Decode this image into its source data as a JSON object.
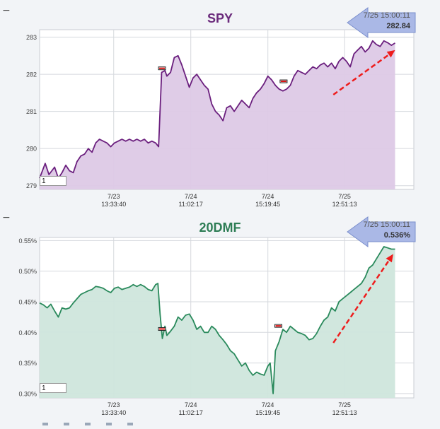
{
  "collapse_symbol": "−",
  "colors": {
    "spy_line": "#6b1f7e",
    "spy_fill": "#ddc9e6",
    "dmf_line": "#2a8a5c",
    "dmf_fill": "#cfe6dc",
    "trend_arrow": "#ee1c1c",
    "grid": "#d5d8dd",
    "readout_bg": "#a9b8e4",
    "readout_border": "#7b8fcc"
  },
  "chart_data": [
    {
      "id": "spy",
      "type": "area",
      "title": "SPY",
      "readout": {
        "time": "7/25 15:00:11",
        "value": "282.84"
      },
      "range_value": "1",
      "ylim": [
        278.9,
        283.2
      ],
      "yticks": [
        279,
        280,
        281,
        282,
        283
      ],
      "ytick_labels": [
        "279",
        "280",
        "281",
        "282",
        "283"
      ],
      "xlim": [
        0,
        100
      ],
      "xticks": [
        {
          "x": 19.8,
          "date": "7/23",
          "time": "13:33:40"
        },
        {
          "x": 40.4,
          "date": "7/24",
          "time": "11:02:17"
        },
        {
          "x": 61.0,
          "date": "7/24",
          "time": "15:19:45"
        },
        {
          "x": 81.5,
          "date": "7/25",
          "time": "12:51:13"
        }
      ],
      "series": [
        {
          "name": "SPY",
          "values": [
            [
              0,
              279.2
            ],
            [
              1.5,
              279.6
            ],
            [
              2.5,
              279.3
            ],
            [
              4,
              279.5
            ],
            [
              5,
              279.2
            ],
            [
              6,
              279.35
            ],
            [
              7,
              279.55
            ],
            [
              8,
              279.4
            ],
            [
              9,
              279.35
            ],
            [
              10,
              279.65
            ],
            [
              11,
              279.8
            ],
            [
              12,
              279.85
            ],
            [
              13,
              280.0
            ],
            [
              14,
              279.9
            ],
            [
              15,
              280.15
            ],
            [
              16,
              280.25
            ],
            [
              17,
              280.2
            ],
            [
              18,
              280.15
            ],
            [
              19,
              280.05
            ],
            [
              20,
              280.15
            ],
            [
              21,
              280.2
            ],
            [
              22,
              280.25
            ],
            [
              23,
              280.2
            ],
            [
              24,
              280.25
            ],
            [
              25,
              280.2
            ],
            [
              26,
              280.25
            ],
            [
              27,
              280.2
            ],
            [
              28,
              280.25
            ],
            [
              29,
              280.15
            ],
            [
              30,
              280.2
            ],
            [
              31,
              280.15
            ],
            [
              31.8,
              280.05
            ],
            [
              32.6,
              282.05
            ],
            [
              33.5,
              282.1
            ],
            [
              34,
              281.95
            ],
            [
              35,
              282.05
            ],
            [
              36,
              282.45
            ],
            [
              37,
              282.5
            ],
            [
              38,
              282.25
            ],
            [
              39,
              281.95
            ],
            [
              40,
              281.65
            ],
            [
              41,
              281.9
            ],
            [
              42,
              282.0
            ],
            [
              43,
              281.85
            ],
            [
              44,
              281.7
            ],
            [
              45,
              281.6
            ],
            [
              46,
              281.2
            ],
            [
              47,
              281.0
            ],
            [
              48,
              280.9
            ],
            [
              49,
              280.75
            ],
            [
              50,
              281.1
            ],
            [
              51,
              281.15
            ],
            [
              52,
              281.0
            ],
            [
              53,
              281.15
            ],
            [
              54,
              281.3
            ],
            [
              55,
              281.2
            ],
            [
              56,
              281.1
            ],
            [
              57,
              281.35
            ],
            [
              58,
              281.5
            ],
            [
              59,
              281.6
            ],
            [
              60,
              281.75
            ],
            [
              61,
              281.95
            ],
            [
              62,
              281.85
            ],
            [
              63,
              281.7
            ],
            [
              64,
              281.6
            ],
            [
              65,
              281.55
            ],
            [
              66,
              281.6
            ],
            [
              67,
              281.7
            ],
            [
              68,
              281.95
            ],
            [
              69,
              282.1
            ],
            [
              70,
              282.05
            ],
            [
              71,
              282.0
            ],
            [
              72,
              282.1
            ],
            [
              73,
              282.2
            ],
            [
              74,
              282.15
            ],
            [
              75,
              282.25
            ],
            [
              76,
              282.3
            ],
            [
              77,
              282.2
            ],
            [
              78,
              282.3
            ],
            [
              79,
              282.15
            ],
            [
              80,
              282.35
            ],
            [
              81,
              282.45
            ],
            [
              82,
              282.35
            ],
            [
              83,
              282.2
            ],
            [
              84,
              282.55
            ],
            [
              85,
              282.65
            ],
            [
              86,
              282.75
            ],
            [
              87,
              282.6
            ],
            [
              88,
              282.7
            ],
            [
              89,
              282.9
            ],
            [
              90,
              282.8
            ],
            [
              91,
              282.75
            ],
            [
              92,
              282.9
            ],
            [
              93,
              282.85
            ],
            [
              94,
              282.78
            ],
            [
              95,
              282.84
            ]
          ]
        }
      ],
      "trend_arrow": {
        "from": [
          78.5,
          281.45
        ],
        "to": [
          95,
          282.65
        ]
      },
      "markers": [
        {
          "x": 32.7,
          "y": 282.15
        },
        {
          "x": 65.2,
          "y": 281.8
        }
      ]
    },
    {
      "id": "dmf",
      "type": "area",
      "title": "20DMF",
      "readout": {
        "time": "7/25 15:00:11",
        "value": "0.536%"
      },
      "range_value": "1",
      "ylim": [
        0.293,
        0.555
      ],
      "yticks": [
        0.3,
        0.35,
        0.4,
        0.45,
        0.5,
        0.55
      ],
      "ytick_labels": [
        "0.30%",
        "0.35%",
        "0.40%",
        "0.45%",
        "0.50%",
        "0.55%"
      ],
      "xlim": [
        0,
        100
      ],
      "xticks": [
        {
          "x": 19.8,
          "date": "7/23",
          "time": "13:33:40"
        },
        {
          "x": 40.4,
          "date": "7/24",
          "time": "11:02:17"
        },
        {
          "x": 61.0,
          "date": "7/24",
          "time": "15:19:45"
        },
        {
          "x": 81.5,
          "date": "7/25",
          "time": "12:51:13"
        }
      ],
      "series": [
        {
          "name": "20DMF",
          "values": [
            [
              0,
              0.448
            ],
            [
              1,
              0.445
            ],
            [
              2,
              0.44
            ],
            [
              3,
              0.446
            ],
            [
              4,
              0.435
            ],
            [
              5,
              0.425
            ],
            [
              6,
              0.44
            ],
            [
              7,
              0.438
            ],
            [
              8,
              0.44
            ],
            [
              9,
              0.448
            ],
            [
              10,
              0.455
            ],
            [
              11,
              0.462
            ],
            [
              12,
              0.465
            ],
            [
              13,
              0.468
            ],
            [
              14,
              0.47
            ],
            [
              15,
              0.475
            ],
            [
              16,
              0.474
            ],
            [
              17,
              0.472
            ],
            [
              18,
              0.468
            ],
            [
              19,
              0.465
            ],
            [
              20,
              0.472
            ],
            [
              21,
              0.474
            ],
            [
              22,
              0.47
            ],
            [
              23,
              0.472
            ],
            [
              24,
              0.474
            ],
            [
              25,
              0.478
            ],
            [
              26,
              0.475
            ],
            [
              27,
              0.478
            ],
            [
              28,
              0.475
            ],
            [
              29,
              0.47
            ],
            [
              30,
              0.468
            ],
            [
              31,
              0.478
            ],
            [
              31.6,
              0.48
            ],
            [
              32.2,
              0.43
            ],
            [
              32.8,
              0.39
            ],
            [
              33.5,
              0.41
            ],
            [
              34,
              0.395
            ],
            [
              35,
              0.402
            ],
            [
              36,
              0.41
            ],
            [
              37,
              0.425
            ],
            [
              38,
              0.42
            ],
            [
              39,
              0.428
            ],
            [
              40,
              0.43
            ],
            [
              41,
              0.42
            ],
            [
              42,
              0.405
            ],
            [
              43,
              0.41
            ],
            [
              44,
              0.4
            ],
            [
              45,
              0.4
            ],
            [
              46,
              0.41
            ],
            [
              47,
              0.405
            ],
            [
              48,
              0.395
            ],
            [
              49,
              0.388
            ],
            [
              50,
              0.38
            ],
            [
              51,
              0.37
            ],
            [
              52,
              0.365
            ],
            [
              53,
              0.355
            ],
            [
              54,
              0.345
            ],
            [
              55,
              0.35
            ],
            [
              56,
              0.338
            ],
            [
              57,
              0.33
            ],
            [
              58,
              0.335
            ],
            [
              59,
              0.332
            ],
            [
              60,
              0.33
            ],
            [
              61,
              0.345
            ],
            [
              61.6,
              0.35
            ],
            [
              62.4,
              0.3
            ],
            [
              63,
              0.37
            ],
            [
              64,
              0.385
            ],
            [
              65,
              0.405
            ],
            [
              66,
              0.4
            ],
            [
              67,
              0.41
            ],
            [
              68,
              0.405
            ],
            [
              69,
              0.4
            ],
            [
              70,
              0.398
            ],
            [
              71,
              0.395
            ],
            [
              72,
              0.388
            ],
            [
              73,
              0.39
            ],
            [
              74,
              0.398
            ],
            [
              75,
              0.41
            ],
            [
              76,
              0.42
            ],
            [
              77,
              0.425
            ],
            [
              78,
              0.44
            ],
            [
              79,
              0.435
            ],
            [
              80,
              0.45
            ],
            [
              81,
              0.455
            ],
            [
              82,
              0.46
            ],
            [
              83,
              0.465
            ],
            [
              84,
              0.47
            ],
            [
              85,
              0.475
            ],
            [
              86,
              0.48
            ],
            [
              87,
              0.49
            ],
            [
              88,
              0.505
            ],
            [
              89,
              0.51
            ],
            [
              90,
              0.52
            ],
            [
              91,
              0.53
            ],
            [
              92,
              0.54
            ],
            [
              93,
              0.538
            ],
            [
              94,
              0.536
            ],
            [
              95,
              0.536
            ]
          ]
        }
      ],
      "trend_arrow": {
        "from": [
          78.5,
          0.383
        ],
        "to": [
          94.5,
          0.528
        ]
      },
      "markers": [
        {
          "x": 32.7,
          "y": 0.405
        },
        {
          "x": 63.8,
          "y": 0.41
        }
      ]
    }
  ]
}
